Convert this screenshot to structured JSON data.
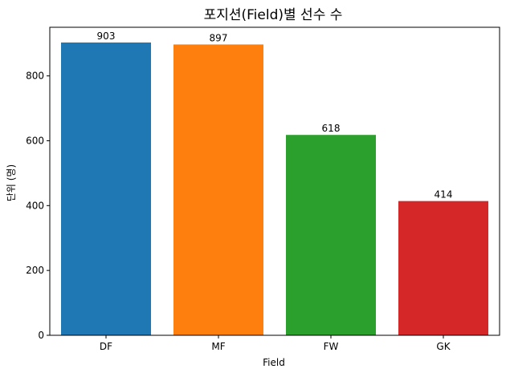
{
  "chart_data": {
    "type": "bar",
    "title": "포지션(Field)별 선수 수",
    "xlabel": "Field",
    "ylabel": "단위 (명)",
    "categories": [
      "DF",
      "MF",
      "FW",
      "GK"
    ],
    "values": [
      903,
      897,
      618,
      414
    ],
    "data_labels": [
      "903",
      "897",
      "618",
      "414"
    ],
    "colors": [
      "#1f77b4",
      "#ff7f0e",
      "#2ca02c",
      "#d62728"
    ],
    "ylim": [
      0,
      950
    ],
    "yticks": [
      0,
      200,
      400,
      600,
      800
    ],
    "ytick_labels": [
      "0",
      "200",
      "400",
      "600",
      "800"
    ],
    "grid": false,
    "legend": "none"
  }
}
